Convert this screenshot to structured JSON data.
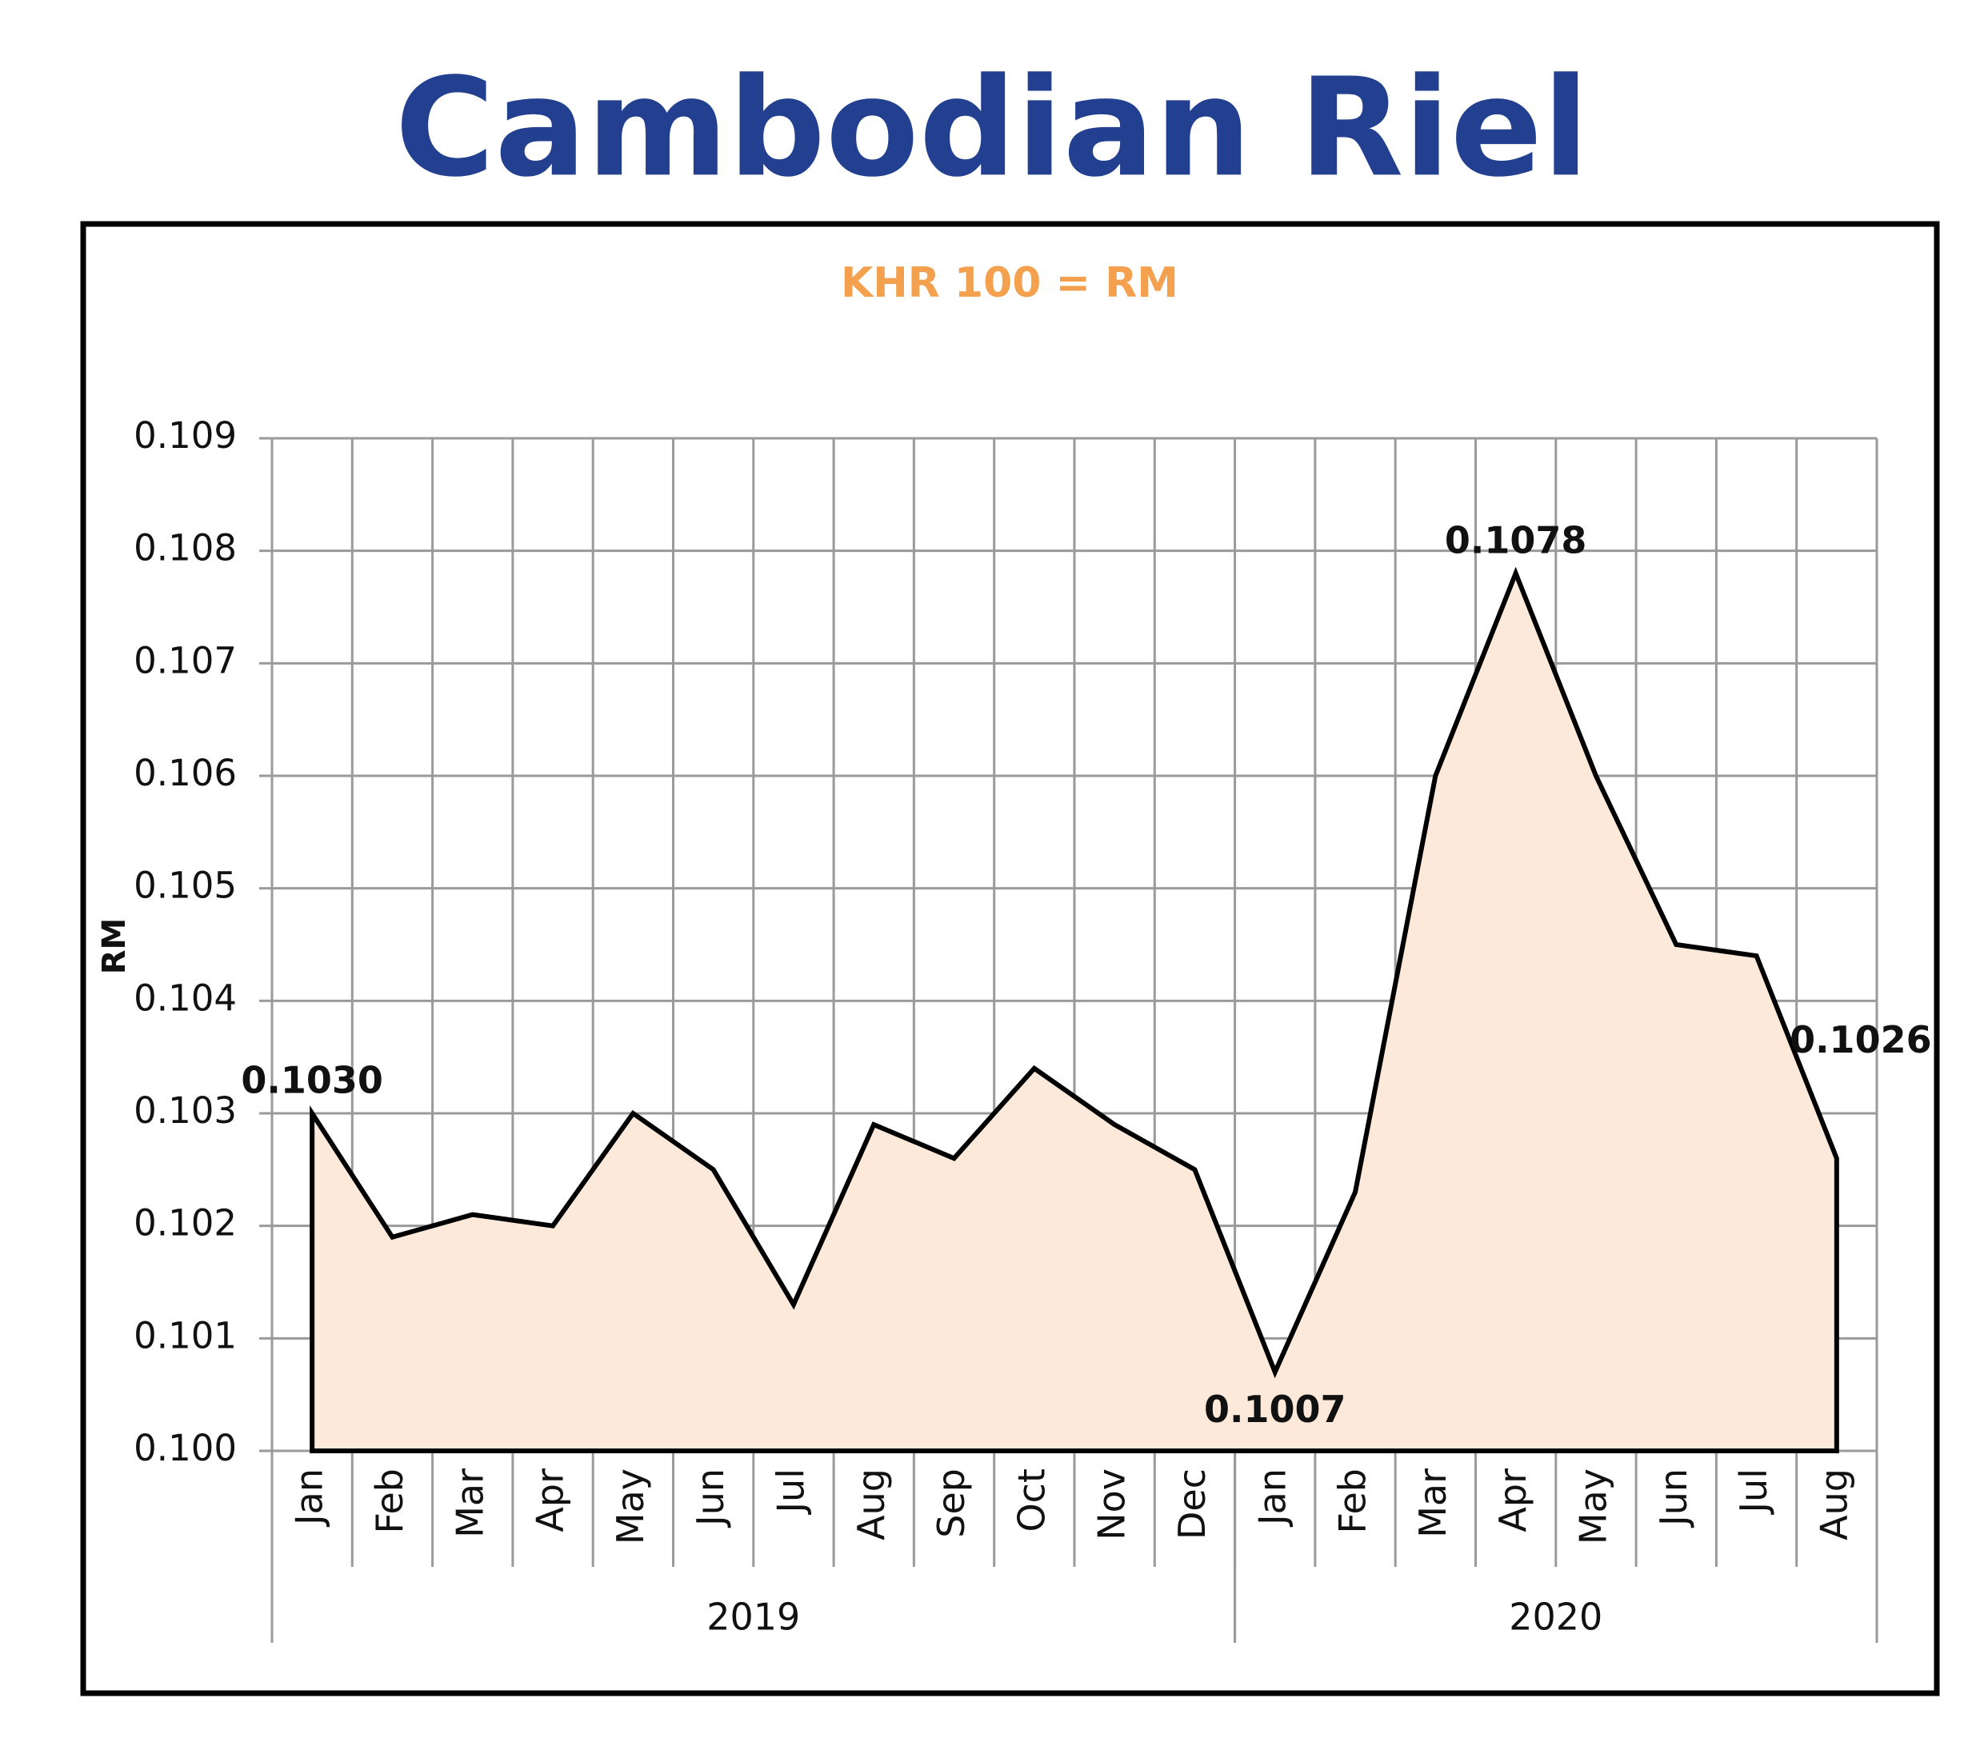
{
  "chart_data": {
    "type": "area",
    "title": "Cambodian Riel",
    "subtitle": "KHR 100 = RM",
    "y_label": "RM",
    "category_groups": [
      {
        "name": "2019",
        "categories": [
          "Jan",
          "Feb",
          "Mar",
          "Apr",
          "May",
          "Jun",
          "Jul",
          "Aug",
          "Sep",
          "Oct",
          "Nov",
          "Dec"
        ]
      },
      {
        "name": "2020",
        "categories": [
          "Jan",
          "Feb",
          "Mar",
          "Apr",
          "May",
          "Jun",
          "Jul",
          "Aug"
        ]
      }
    ],
    "values": [
      0.103,
      0.1019,
      0.1021,
      0.102,
      0.103,
      0.1025,
      0.1013,
      0.1029,
      0.1026,
      0.1034,
      0.1029,
      0.1025,
      0.1007,
      0.1023,
      0.106,
      0.1078,
      0.106,
      0.1045,
      0.1044,
      0.1026
    ],
    "value_labels": [
      "0.1030",
      null,
      null,
      null,
      null,
      null,
      null,
      null,
      null,
      null,
      null,
      null,
      "0.1007",
      null,
      null,
      "0.1078",
      null,
      null,
      null,
      "0.1026"
    ],
    "color": "#fde9da",
    "line_color": "#000000",
    "ylim": [
      0.1,
      0.109
    ],
    "yticks": [
      {
        "value": 0.1,
        "label": "0.100"
      },
      0.101,
      0.102,
      0.103,
      0.104,
      0.105,
      0.106,
      0.107,
      0.108,
      0.109
    ],
    "grid": true
  }
}
